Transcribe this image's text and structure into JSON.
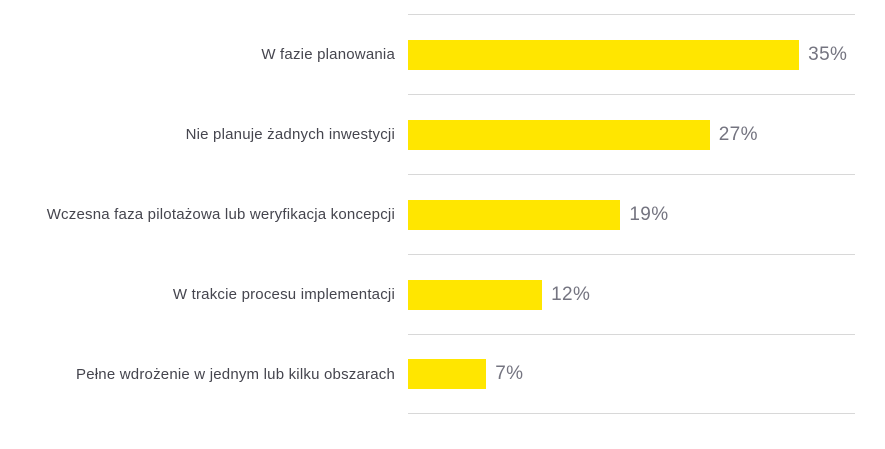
{
  "chart_data": {
    "type": "bar",
    "orientation": "horizontal",
    "title": "",
    "xlabel": "",
    "ylabel": "",
    "xlim": [
      0,
      40
    ],
    "grid": "horizontal row separator lines, bar area only",
    "legend": "none",
    "categories": [
      "W fazie planowania",
      "Nie planuje żadnych inwestycji",
      "Wczesna faza pilotażowa lub weryfikacja koncepcji",
      "W trakcie procesu implementacji",
      "Pełne wdrożenie w jednym lub kilku obszarach"
    ],
    "values": [
      35,
      27,
      19,
      12,
      7
    ],
    "value_labels": [
      "35%",
      "27%",
      "19%",
      "12%",
      "7%"
    ],
    "colors": {
      "bar": "#FFE600",
      "category_label": "#45454e",
      "value_label": "#747480",
      "gridline": "#d8d8d8",
      "background": "#ffffff"
    }
  }
}
